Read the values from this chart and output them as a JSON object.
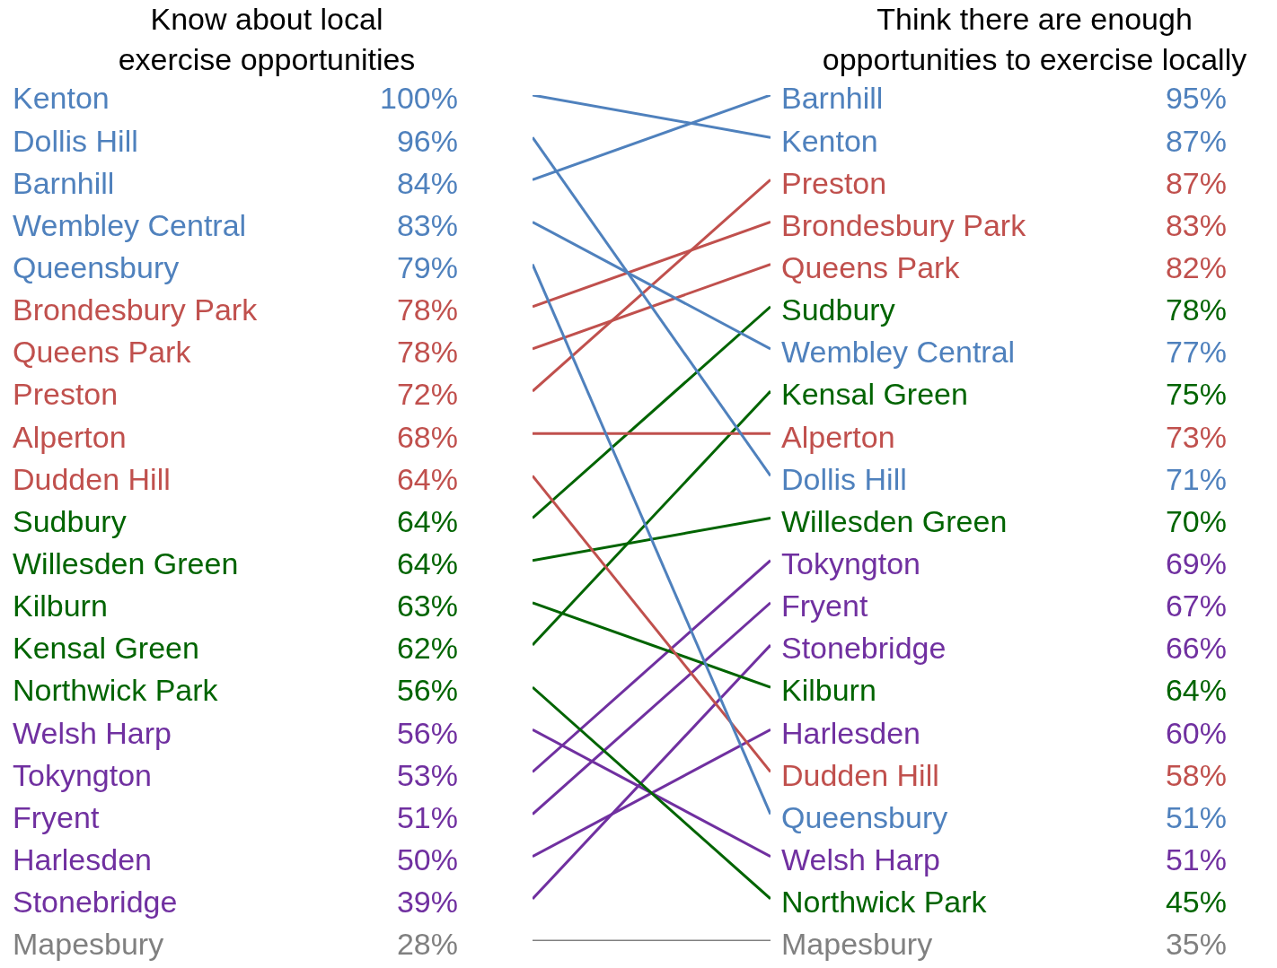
{
  "chart_data": {
    "type": "other",
    "categories": [
      "Know about local\nexercise opportunities",
      "Think there are enough\nopportunities to exercise locally"
    ],
    "legend": false,
    "series": [
      {
        "name": "Kenton",
        "color": "#4f81bd",
        "values": [
          100,
          87
        ],
        "value_labels": [
          "100%",
          "87%"
        ]
      },
      {
        "name": "Dollis Hill",
        "color": "#4f81bd",
        "values": [
          96,
          71
        ],
        "value_labels": [
          "96%",
          "71%"
        ]
      },
      {
        "name": "Barnhill",
        "color": "#4f81bd",
        "values": [
          84,
          95
        ],
        "value_labels": [
          "84%",
          "95%"
        ]
      },
      {
        "name": "Wembley Central",
        "color": "#4f81bd",
        "values": [
          83,
          77
        ],
        "value_labels": [
          "83%",
          "77%"
        ]
      },
      {
        "name": "Queensbury",
        "color": "#4f81bd",
        "values": [
          79,
          51
        ],
        "value_labels": [
          "79%",
          "51%"
        ]
      },
      {
        "name": "Brondesbury Park",
        "color": "#c0504d",
        "values": [
          78,
          83
        ],
        "value_labels": [
          "78%",
          "83%"
        ]
      },
      {
        "name": "Queens Park",
        "color": "#c0504d",
        "values": [
          78,
          82
        ],
        "value_labels": [
          "78%",
          "82%"
        ]
      },
      {
        "name": "Preston",
        "color": "#c0504d",
        "values": [
          72,
          87
        ],
        "value_labels": [
          "72%",
          "87%"
        ]
      },
      {
        "name": "Alperton",
        "color": "#c0504d",
        "values": [
          68,
          73
        ],
        "value_labels": [
          "68%",
          "73%"
        ]
      },
      {
        "name": "Dudden Hill",
        "color": "#c0504d",
        "values": [
          64,
          58
        ],
        "value_labels": [
          "64%",
          "58%"
        ]
      },
      {
        "name": "Sudbury",
        "color": "#006400",
        "values": [
          64,
          78
        ],
        "value_labels": [
          "64%",
          "78%"
        ]
      },
      {
        "name": "Willesden Green",
        "color": "#006400",
        "values": [
          64,
          70
        ],
        "value_labels": [
          "64%",
          "70%"
        ]
      },
      {
        "name": "Kilburn",
        "color": "#006400",
        "values": [
          63,
          64
        ],
        "value_labels": [
          "63%",
          "64%"
        ]
      },
      {
        "name": "Kensal Green",
        "color": "#006400",
        "values": [
          62,
          75
        ],
        "value_labels": [
          "62%",
          "75%"
        ]
      },
      {
        "name": "Northwick Park",
        "color": "#006400",
        "values": [
          56,
          45
        ],
        "value_labels": [
          "56%",
          "45%"
        ]
      },
      {
        "name": "Welsh Harp",
        "color": "#7030a0",
        "values": [
          56,
          51
        ],
        "value_labels": [
          "56%",
          "51%"
        ]
      },
      {
        "name": "Tokyngton",
        "color": "#7030a0",
        "values": [
          53,
          69
        ],
        "value_labels": [
          "53%",
          "69%"
        ]
      },
      {
        "name": "Fryent",
        "color": "#7030a0",
        "values": [
          51,
          67
        ],
        "value_labels": [
          "51%",
          "67%"
        ]
      },
      {
        "name": "Harlesden",
        "color": "#7030a0",
        "values": [
          50,
          60
        ],
        "value_labels": [
          "50%",
          "60%"
        ]
      },
      {
        "name": "Stonebridge",
        "color": "#7030a0",
        "values": [
          39,
          66
        ],
        "value_labels": [
          "39%",
          "66%"
        ]
      },
      {
        "name": "Mapesbury",
        "color": "#808080",
        "values": [
          28,
          35
        ],
        "value_labels": [
          "28%",
          "35%"
        ]
      }
    ]
  }
}
